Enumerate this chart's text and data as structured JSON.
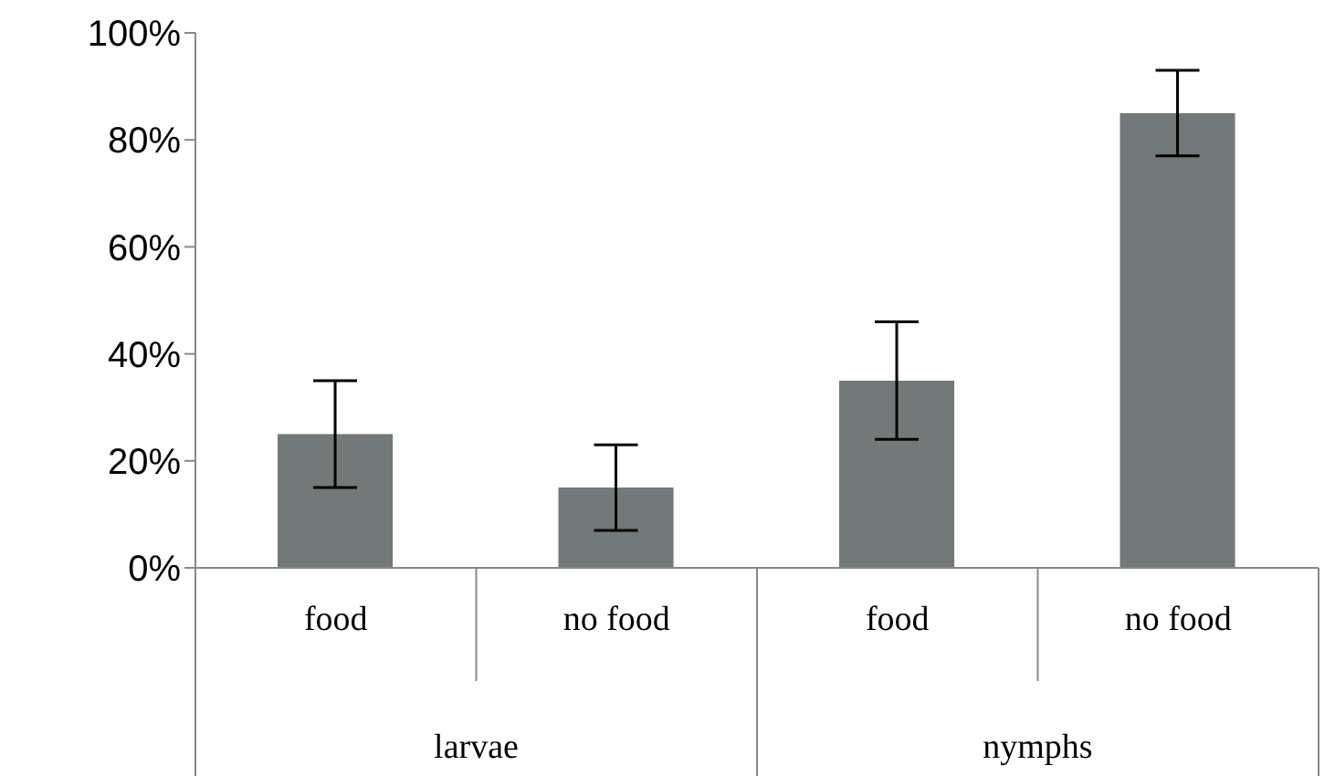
{
  "chart_data": {
    "type": "bar",
    "categories": [
      "food",
      "no food",
      "food",
      "no food"
    ],
    "values": [
      25,
      15,
      35,
      85
    ],
    "errors": [
      [
        15,
        35
      ],
      [
        7,
        23
      ],
      [
        24,
        46
      ],
      [
        77,
        93
      ]
    ],
    "color": "#737878",
    "ylim": [
      0,
      100
    ],
    "yticks": [
      {
        "value": 0,
        "label": "0%"
      },
      {
        "value": 20,
        "label": "20%"
      },
      {
        "value": 40,
        "label": "40%"
      },
      {
        "value": 60,
        "label": "60%"
      },
      {
        "value": 80,
        "label": "80%"
      },
      {
        "value": 100,
        "label": "100%"
      }
    ],
    "grid": false,
    "legend": false,
    "annotations": [
      "larvae",
      "nymphs"
    ]
  }
}
